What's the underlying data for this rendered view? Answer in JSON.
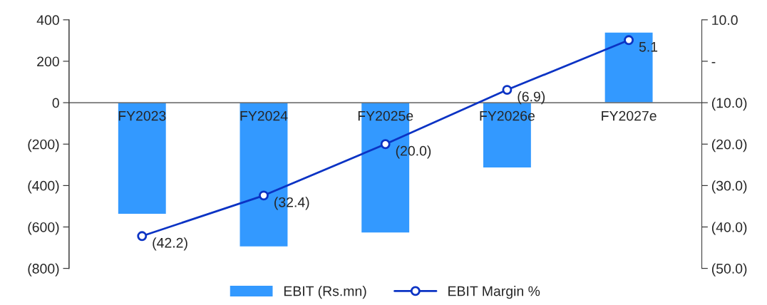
{
  "chart_data": {
    "type": "bar",
    "categories": [
      "FY2023",
      "FY2024",
      "FY2025e",
      "FY2026e",
      "FY2027e"
    ],
    "series": [
      {
        "name": "EBIT (Rs.mn)",
        "color": "#3399ff",
        "values": [
          -539,
          -696,
          -629,
          -315,
          341
        ]
      },
      {
        "name": "EBIT Margin %",
        "type": "line",
        "axis": "y2",
        "color": "#0b33c4",
        "marker": "circle",
        "values": [
          -42.2,
          -32.4,
          -20.0,
          -6.9,
          5.1
        ],
        "value_labels": [
          "(42.2)",
          "(32.4)",
          "(20.0)",
          "(6.9)",
          "5.1"
        ]
      }
    ],
    "ylim": [
      -800,
      400
    ],
    "yticks": [
      {
        "value": -800,
        "label": "(800)"
      },
      {
        "value": -600,
        "label": "(600)"
      },
      {
        "value": -400,
        "label": "(400)"
      },
      {
        "value": -200,
        "label": "(200)"
      },
      0,
      200,
      400
    ],
    "y2lim": [
      -50,
      10
    ],
    "y2ticks": [
      {
        "value": -50,
        "label": "(50.0)"
      },
      {
        "value": -40,
        "label": "(40.0)"
      },
      {
        "value": -30,
        "label": "(30.0)"
      },
      {
        "value": -20,
        "label": "(20.0)"
      },
      {
        "value": -10,
        "label": "(10.0)"
      },
      {
        "value": 0,
        "label": "-"
      },
      {
        "value": 10,
        "label": "10.0"
      }
    ],
    "legend": "bottom"
  }
}
